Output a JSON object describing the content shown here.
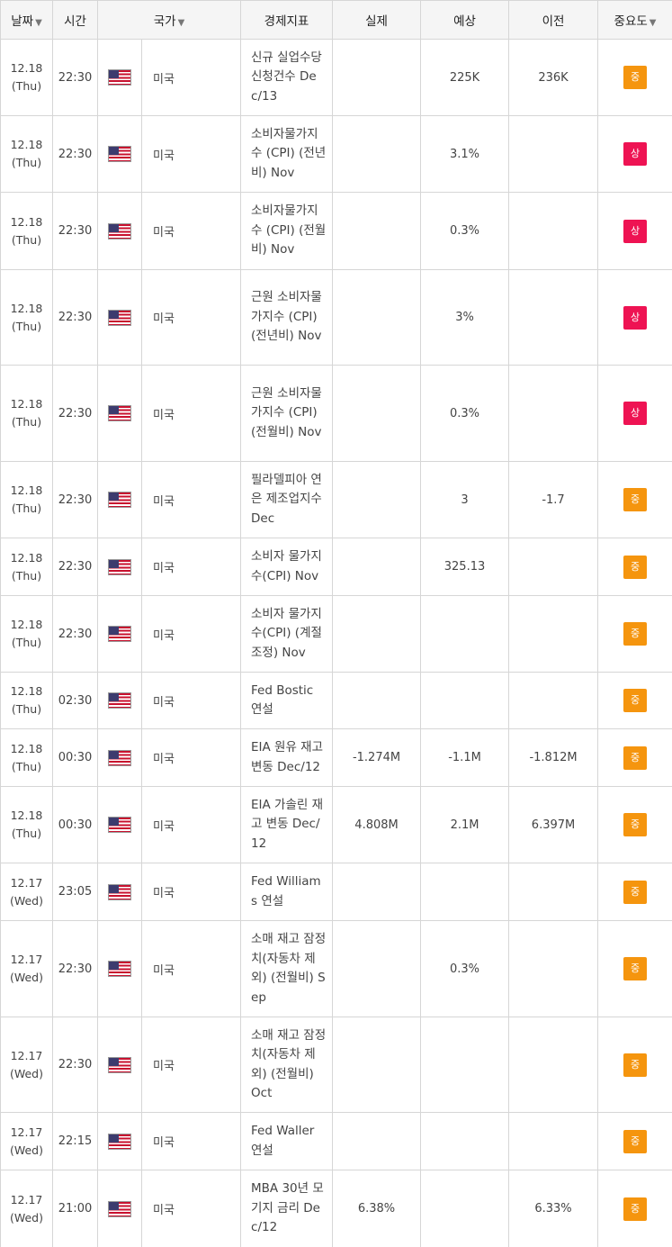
{
  "columns": {
    "date": "날짜",
    "time": "시간",
    "country": "국가",
    "indicator": "경제지표",
    "actual": "실제",
    "forecast": "예상",
    "previous": "이전",
    "importance": "중요도"
  },
  "sort_arrow": "▼",
  "colors": {
    "mid": "#f5950e",
    "high": "#ee1353"
  },
  "rows": [
    {
      "date": "12.18",
      "day": "(Thu)",
      "time": "22:30",
      "flag": "us-flag-icon",
      "country": "미국",
      "indicator": "신규 실업수당 신청건수 Dec/13",
      "actual": "",
      "forecast": "225K",
      "previous": "236K",
      "importance": "중",
      "level": "mid"
    },
    {
      "date": "12.18",
      "day": "(Thu)",
      "time": "22:30",
      "flag": "us-flag-icon",
      "country": "미국",
      "indicator": "소비자물가지수 (CPI) (전년비) Nov",
      "actual": "",
      "forecast": "3.1%",
      "previous": "",
      "importance": "상",
      "level": "high"
    },
    {
      "date": "12.18",
      "day": "(Thu)",
      "time": "22:30",
      "flag": "us-flag-icon",
      "country": "미국",
      "indicator": "소비자물가지수 (CPI) (전월비) Nov",
      "actual": "",
      "forecast": "0.3%",
      "previous": "",
      "importance": "상",
      "level": "high"
    },
    {
      "date": "12.18",
      "day": "(Thu)",
      "time": "22:30",
      "flag": "us-flag-icon",
      "country": "미국",
      "indicator": "근원 소비자물가지수 (CPI) (전년비) Nov",
      "actual": "",
      "forecast": "3%",
      "previous": "",
      "importance": "상",
      "level": "high"
    },
    {
      "date": "12.18",
      "day": "(Thu)",
      "time": "22:30",
      "flag": "us-flag-icon",
      "country": "미국",
      "indicator": "근원 소비자물가지수 (CPI) (전월비) Nov",
      "actual": "",
      "forecast": "0.3%",
      "previous": "",
      "importance": "상",
      "level": "high"
    },
    {
      "date": "12.18",
      "day": "(Thu)",
      "time": "22:30",
      "flag": "us-flag-icon",
      "country": "미국",
      "indicator": "필라델피아 연은 제조업지수 Dec",
      "actual": "",
      "forecast": "3",
      "previous": "-1.7",
      "importance": "중",
      "level": "mid"
    },
    {
      "date": "12.18",
      "day": "(Thu)",
      "time": "22:30",
      "flag": "us-flag-icon",
      "country": "미국",
      "indicator": "소비자 물가지수(CPI) Nov",
      "actual": "",
      "forecast": "325.13",
      "previous": "",
      "importance": "중",
      "level": "mid"
    },
    {
      "date": "12.18",
      "day": "(Thu)",
      "time": "22:30",
      "flag": "us-flag-icon",
      "country": "미국",
      "indicator": "소비자 물가지수(CPI) (계절조정) Nov",
      "actual": "",
      "forecast": "",
      "previous": "",
      "importance": "중",
      "level": "mid"
    },
    {
      "date": "12.18",
      "day": "(Thu)",
      "time": "02:30",
      "flag": "us-flag-icon",
      "country": "미국",
      "indicator": "Fed Bostic 연설",
      "actual": "",
      "forecast": "",
      "previous": "",
      "importance": "중",
      "level": "mid"
    },
    {
      "date": "12.18",
      "day": "(Thu)",
      "time": "00:30",
      "flag": "us-flag-icon",
      "country": "미국",
      "indicator": "EIA 원유 재고 변동 Dec/12",
      "actual": "-1.274M",
      "forecast": "-1.1M",
      "previous": "-1.812M",
      "importance": "중",
      "level": "mid"
    },
    {
      "date": "12.18",
      "day": "(Thu)",
      "time": "00:30",
      "flag": "us-flag-icon",
      "country": "미국",
      "indicator": "EIA 가솔린 재고 변동 Dec/12",
      "actual": "4.808M",
      "forecast": "2.1M",
      "previous": "6.397M",
      "importance": "중",
      "level": "mid"
    },
    {
      "date": "12.17",
      "day": "(Wed)",
      "time": "23:05",
      "flag": "us-flag-icon",
      "country": "미국",
      "indicator": "Fed Williams 연설",
      "actual": "",
      "forecast": "",
      "previous": "",
      "importance": "중",
      "level": "mid"
    },
    {
      "date": "12.17",
      "day": "(Wed)",
      "time": "22:30",
      "flag": "us-flag-icon",
      "country": "미국",
      "indicator": "소매 재고 잠정치(자동차 제외) (전월비) Sep",
      "actual": "",
      "forecast": "0.3%",
      "previous": "",
      "importance": "중",
      "level": "mid"
    },
    {
      "date": "12.17",
      "day": "(Wed)",
      "time": "22:30",
      "flag": "us-flag-icon",
      "country": "미국",
      "indicator": "소매 재고 잠정치(자동차 제외) (전월비) Oct",
      "actual": "",
      "forecast": "",
      "previous": "",
      "importance": "중",
      "level": "mid"
    },
    {
      "date": "12.17",
      "day": "(Wed)",
      "time": "22:15",
      "flag": "us-flag-icon",
      "country": "미국",
      "indicator": "Fed Waller 연설",
      "actual": "",
      "forecast": "",
      "previous": "",
      "importance": "중",
      "level": "mid"
    },
    {
      "date": "12.17",
      "day": "(Wed)",
      "time": "21:00",
      "flag": "us-flag-icon",
      "country": "미국",
      "indicator": "MBA 30년 모기지 금리 Dec/12",
      "actual": "6.38%",
      "forecast": "",
      "previous": "6.33%",
      "importance": "중",
      "level": "mid"
    }
  ]
}
